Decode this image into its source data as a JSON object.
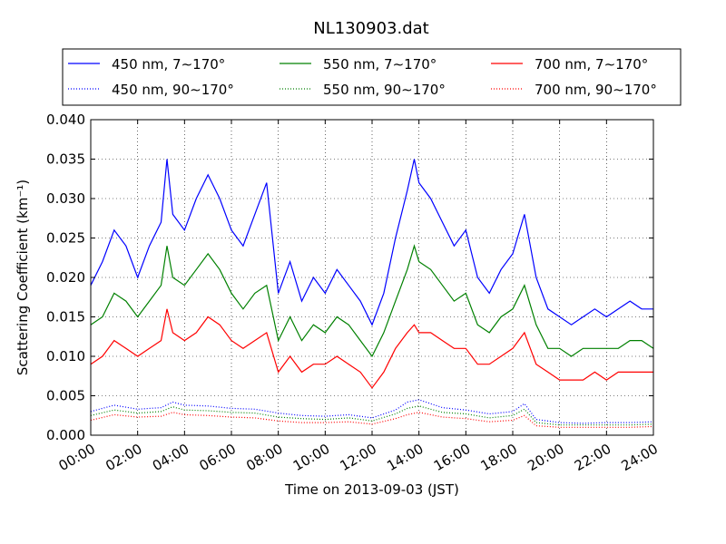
{
  "chart_data": {
    "type": "line",
    "title": "NL130903.dat",
    "xlabel": "Time on 2013-09-03 (JST)",
    "ylabel": "Scattering Coefficient (km⁻¹)",
    "xlim": [
      0,
      24
    ],
    "ylim": [
      0,
      0.04
    ],
    "x_ticks": [
      "00:00",
      "02:00",
      "04:00",
      "06:00",
      "08:00",
      "10:00",
      "12:00",
      "14:00",
      "16:00",
      "18:00",
      "20:00",
      "22:00",
      "24:00"
    ],
    "y_ticks": [
      "0.000",
      "0.005",
      "0.010",
      "0.015",
      "0.020",
      "0.025",
      "0.030",
      "0.035",
      "0.040"
    ],
    "grid": true,
    "legend_position": "top",
    "series": [
      {
        "name": "450 nm, 7∼170°",
        "color": "#0000ff",
        "style": "solid",
        "x": [
          0,
          0.5,
          1,
          1.5,
          2,
          2.5,
          3,
          3.25,
          3.5,
          4,
          4.5,
          5,
          5.5,
          6,
          6.5,
          7,
          7.5,
          8,
          8.5,
          9,
          9.5,
          10,
          10.5,
          11,
          11.5,
          12,
          12.5,
          13,
          13.5,
          13.8,
          14,
          14.5,
          15,
          15.5,
          16,
          16.5,
          17,
          17.5,
          18,
          18.5,
          19,
          19.5,
          20,
          20.5,
          21,
          21.5,
          22,
          22.5,
          23,
          23.5,
          24
        ],
        "values": [
          0.019,
          0.022,
          0.026,
          0.024,
          0.02,
          0.024,
          0.027,
          0.035,
          0.028,
          0.026,
          0.03,
          0.033,
          0.03,
          0.026,
          0.024,
          0.028,
          0.032,
          0.018,
          0.022,
          0.017,
          0.02,
          0.018,
          0.021,
          0.019,
          0.017,
          0.014,
          0.018,
          0.025,
          0.031,
          0.035,
          0.032,
          0.03,
          0.027,
          0.024,
          0.026,
          0.02,
          0.018,
          0.021,
          0.023,
          0.028,
          0.02,
          0.016,
          0.015,
          0.014,
          0.015,
          0.016,
          0.015,
          0.016,
          0.017,
          0.016,
          0.016
        ]
      },
      {
        "name": "550 nm, 7∼170°",
        "color": "#008000",
        "style": "solid",
        "x": [
          0,
          0.5,
          1,
          1.5,
          2,
          2.5,
          3,
          3.25,
          3.5,
          4,
          4.5,
          5,
          5.5,
          6,
          6.5,
          7,
          7.5,
          8,
          8.5,
          9,
          9.5,
          10,
          10.5,
          11,
          11.5,
          12,
          12.5,
          13,
          13.5,
          13.8,
          14,
          14.5,
          15,
          15.5,
          16,
          16.5,
          17,
          17.5,
          18,
          18.5,
          19,
          19.5,
          20,
          20.5,
          21,
          21.5,
          22,
          22.5,
          23,
          23.5,
          24
        ],
        "values": [
          0.014,
          0.015,
          0.018,
          0.017,
          0.015,
          0.017,
          0.019,
          0.024,
          0.02,
          0.019,
          0.021,
          0.023,
          0.021,
          0.018,
          0.016,
          0.018,
          0.019,
          0.012,
          0.015,
          0.012,
          0.014,
          0.013,
          0.015,
          0.014,
          0.012,
          0.01,
          0.013,
          0.017,
          0.021,
          0.024,
          0.022,
          0.021,
          0.019,
          0.017,
          0.018,
          0.014,
          0.013,
          0.015,
          0.016,
          0.019,
          0.014,
          0.011,
          0.011,
          0.01,
          0.011,
          0.011,
          0.011,
          0.011,
          0.012,
          0.012,
          0.011
        ]
      },
      {
        "name": "700 nm, 7∼170°",
        "color": "#ff0000",
        "style": "solid",
        "x": [
          0,
          0.5,
          1,
          1.5,
          2,
          2.5,
          3,
          3.25,
          3.5,
          4,
          4.5,
          5,
          5.5,
          6,
          6.5,
          7,
          7.5,
          8,
          8.5,
          9,
          9.5,
          10,
          10.5,
          11,
          11.5,
          12,
          12.5,
          13,
          13.5,
          13.8,
          14,
          14.5,
          15,
          15.5,
          16,
          16.5,
          17,
          17.5,
          18,
          18.5,
          19,
          19.5,
          20,
          20.5,
          21,
          21.5,
          22,
          22.5,
          23,
          23.5,
          24
        ],
        "values": [
          0.009,
          0.01,
          0.012,
          0.011,
          0.01,
          0.011,
          0.012,
          0.016,
          0.013,
          0.012,
          0.013,
          0.015,
          0.014,
          0.012,
          0.011,
          0.012,
          0.013,
          0.008,
          0.01,
          0.008,
          0.009,
          0.009,
          0.01,
          0.009,
          0.008,
          0.006,
          0.008,
          0.011,
          0.013,
          0.014,
          0.013,
          0.013,
          0.012,
          0.011,
          0.011,
          0.009,
          0.009,
          0.01,
          0.011,
          0.013,
          0.009,
          0.008,
          0.007,
          0.007,
          0.007,
          0.008,
          0.007,
          0.008,
          0.008,
          0.008,
          0.008
        ]
      },
      {
        "name": "450 nm, 90∼170°",
        "color": "#0000ff",
        "style": "dotted",
        "x": [
          0,
          1,
          2,
          3,
          3.5,
          4,
          5,
          6,
          7,
          8,
          9,
          10,
          11,
          12,
          13,
          13.5,
          14,
          15,
          16,
          17,
          18,
          18.5,
          19,
          20,
          21,
          22,
          23,
          24
        ],
        "values": [
          0.003,
          0.0038,
          0.0033,
          0.0035,
          0.0042,
          0.0038,
          0.0037,
          0.0034,
          0.0033,
          0.0028,
          0.0025,
          0.0024,
          0.0026,
          0.0022,
          0.0032,
          0.0042,
          0.0045,
          0.0035,
          0.0032,
          0.0027,
          0.003,
          0.004,
          0.002,
          0.0016,
          0.0015,
          0.0016,
          0.0016,
          0.0017
        ]
      },
      {
        "name": "550 nm, 90∼170°",
        "color": "#008000",
        "style": "dotted",
        "x": [
          0,
          1,
          2,
          3,
          3.5,
          4,
          5,
          6,
          7,
          8,
          9,
          10,
          11,
          12,
          13,
          13.5,
          14,
          15,
          16,
          17,
          18,
          18.5,
          19,
          20,
          21,
          22,
          23,
          24
        ],
        "values": [
          0.0025,
          0.0032,
          0.0028,
          0.003,
          0.0036,
          0.0032,
          0.0031,
          0.0029,
          0.0028,
          0.0023,
          0.0021,
          0.002,
          0.0022,
          0.0018,
          0.0027,
          0.0034,
          0.0037,
          0.0029,
          0.0027,
          0.0022,
          0.0025,
          0.0033,
          0.0016,
          0.0013,
          0.0013,
          0.0013,
          0.0013,
          0.0014
        ]
      },
      {
        "name": "700 nm, 90∼170°",
        "color": "#ff0000",
        "style": "dotted",
        "x": [
          0,
          1,
          2,
          3,
          3.5,
          4,
          5,
          6,
          7,
          8,
          9,
          10,
          11,
          12,
          13,
          13.5,
          14,
          15,
          16,
          17,
          18,
          18.5,
          19,
          20,
          21,
          22,
          23,
          24
        ],
        "values": [
          0.0019,
          0.0026,
          0.0023,
          0.0024,
          0.0029,
          0.0026,
          0.0025,
          0.0023,
          0.0022,
          0.0018,
          0.0016,
          0.0016,
          0.0017,
          0.0014,
          0.0021,
          0.0026,
          0.0029,
          0.0023,
          0.0021,
          0.0017,
          0.0019,
          0.0025,
          0.0012,
          0.001,
          0.001,
          0.001,
          0.001,
          0.0011
        ]
      }
    ]
  }
}
